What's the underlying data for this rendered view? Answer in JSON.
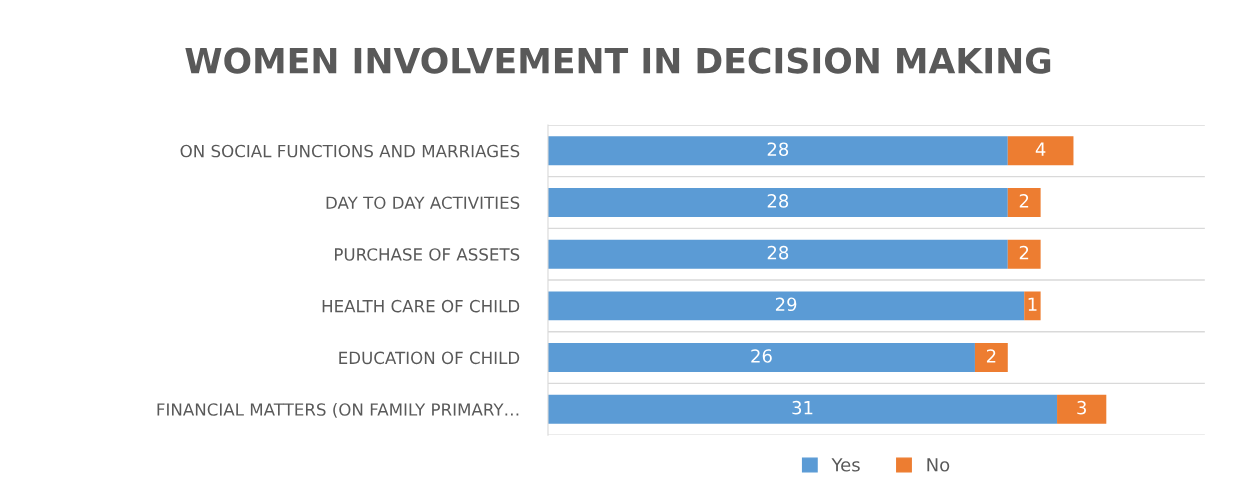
{
  "chart_data": {
    "type": "bar",
    "orientation": "horizontal",
    "stacked": true,
    "title": "WOMEN INVOLVEMENT IN DECISION MAKING",
    "categories": [
      "ON SOCIAL FUNCTIONS AND MARRIAGES",
      "DAY TO DAY ACTIVITIES",
      "PURCHASE OF ASSETS",
      "HEALTH CARE OF CHILD",
      "EDUCATION OF CHILD",
      "FINANCIAL MATTERS (ON FAMILY PRIMARY…"
    ],
    "series": [
      {
        "name": "Yes",
        "color": "#5b9bd5",
        "values": [
          28,
          28,
          28,
          29,
          26,
          31
        ]
      },
      {
        "name": "No",
        "color": "#ed7d31",
        "values": [
          4,
          2,
          2,
          1,
          2,
          3
        ]
      }
    ],
    "xlim": [
      0,
      40
    ],
    "data_labels": true,
    "grid": "y",
    "legend": "bottom",
    "tick_labels": "y"
  }
}
